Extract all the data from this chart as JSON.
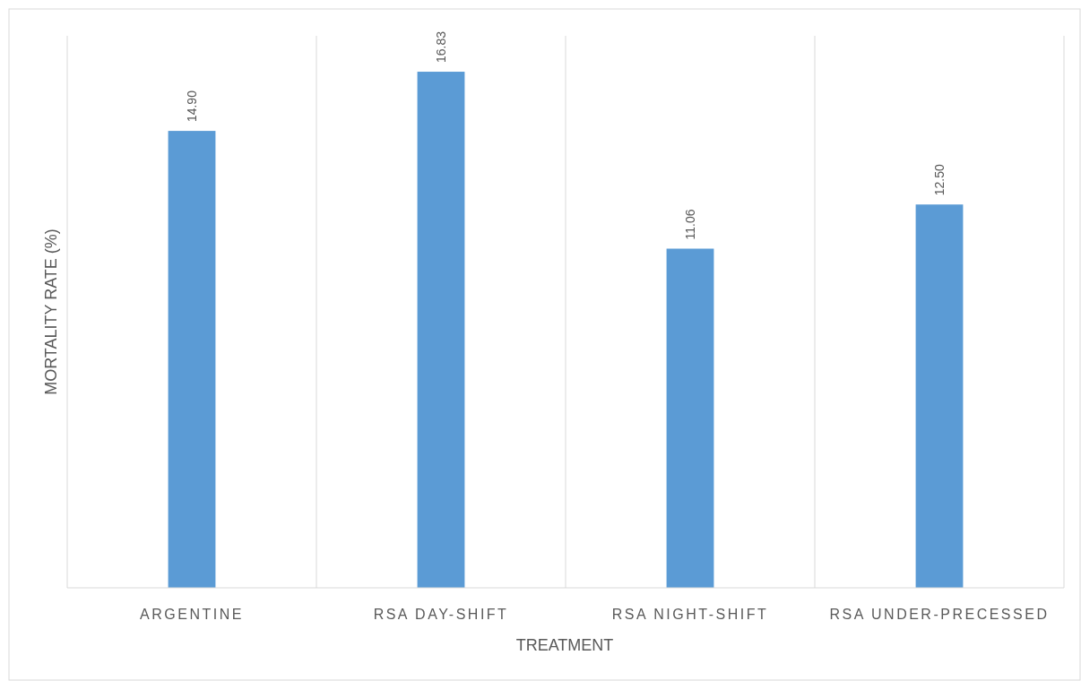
{
  "chart_data": {
    "type": "bar",
    "xlabel": "TREATMENT",
    "ylabel": "MORTALITY RATE (%)",
    "categories": [
      "ARGENTINE",
      "RSA DAY-SHIFT",
      "RSA NIGHT-SHIFT",
      "RSA UNDER-PRECESSED"
    ],
    "values": [
      14.9,
      16.83,
      11.06,
      12.5
    ],
    "value_labels": [
      "14.90",
      "16.83",
      "11.06",
      "12.50"
    ],
    "color": "#5b9bd5",
    "ylim": [
      0,
      18
    ],
    "grid": "x",
    "tick_labels": "x"
  }
}
